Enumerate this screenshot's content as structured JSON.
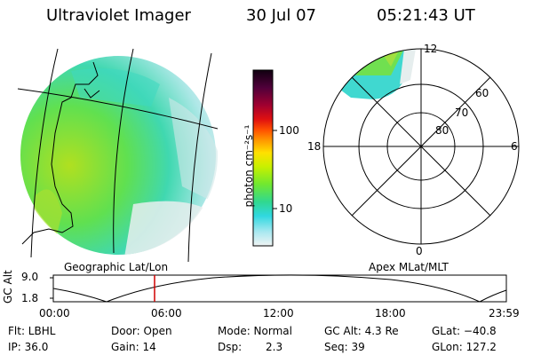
{
  "header": {
    "title": "Ultraviolet Imager",
    "date": "30 Jul 07",
    "time": "05:21:43 UT"
  },
  "geo_panel": {
    "label": "Geographic Lat/Lon"
  },
  "polar_panel": {
    "label": "Apex MLat/MLT",
    "mlt_labels": {
      "top": "12",
      "left": "18",
      "right": "6",
      "bottom": "0"
    },
    "lat_labels": [
      "60",
      "70",
      "80"
    ]
  },
  "colorbar": {
    "unit_label": "photon cm⁻²s⁻¹",
    "ticks": [
      "100",
      "10"
    ],
    "colors": [
      "#1a001a",
      "#3a0030",
      "#7a0030",
      "#c00020",
      "#ff2000",
      "#ff8000",
      "#ffb000",
      "#ffe000",
      "#c0f000",
      "#80f000",
      "#30e040",
      "#20d0a0",
      "#30d8e0",
      "#a0e8f0",
      "#e8f0f0"
    ]
  },
  "timeline": {
    "axis_label": "GC Alt",
    "y_ticks": [
      "9.0",
      "1.8"
    ],
    "x_ticks": [
      "00:00",
      "06:00",
      "12:00",
      "18:00",
      "23:59"
    ],
    "marker_time": "05:21:43"
  },
  "info": {
    "filter_label": "Flt: LBHL",
    "ip_label": "IP: 36.0",
    "door_label": "Door: Open",
    "gain_label": "Gain: 14",
    "mode_label": "Mode: Normal",
    "dsp_label": "Dsp:",
    "dsp_value": "2.3",
    "gcalt_label": "GC Alt: 4.3 Re",
    "seq_label": "Seq: 39",
    "glat_label": "GLat: −40.8",
    "glon_label": "GLon: 127.2"
  }
}
